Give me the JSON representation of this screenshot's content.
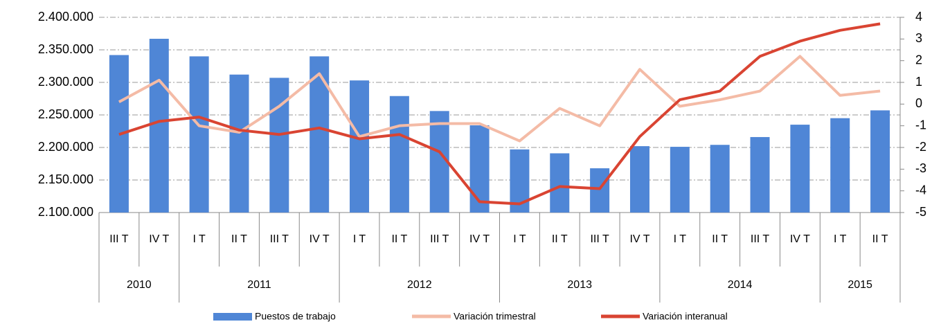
{
  "chart_data": {
    "type": "bar-line",
    "categories": [
      "III T",
      "IV T",
      "I T",
      "II T",
      "III T",
      "IV T",
      "I T",
      "II T",
      "III T",
      "IV T",
      "I T",
      "II T",
      "III T",
      "IV T",
      "I T",
      "II T",
      "III T",
      "IV T",
      "I T",
      "II T"
    ],
    "groups": [
      {
        "name": "2010",
        "count": 2
      },
      {
        "name": "2011",
        "count": 4
      },
      {
        "name": "2012",
        "count": 4
      },
      {
        "name": "2013",
        "count": 4
      },
      {
        "name": "2014",
        "count": 4
      },
      {
        "name": "2015",
        "count": 2
      }
    ],
    "series": [
      {
        "name": "Puestos de trabajo",
        "type": "bar",
        "color": "#4f86d6",
        "axis": "y",
        "values": [
          2342000,
          2367000,
          2340000,
          2312000,
          2307000,
          2340000,
          2303000,
          2279000,
          2256000,
          2234000,
          2197000,
          2191000,
          2168000,
          2202000,
          2201000,
          2204000,
          2216000,
          2235000,
          2245000,
          2257000
        ]
      },
      {
        "name": "Variación trimestral",
        "type": "line",
        "color": "#f4bba6",
        "axis": "y2",
        "values": [
          0.1,
          1.1,
          -1.0,
          -1.3,
          -0.1,
          1.4,
          -1.5,
          -1.0,
          -0.9,
          -0.9,
          -1.7,
          -0.2,
          -1.0,
          1.6,
          -0.1,
          0.2,
          0.6,
          2.2,
          0.4,
          0.6
        ]
      },
      {
        "name": "Variación interanual",
        "type": "line",
        "color": "#d94432",
        "axis": "y2",
        "values": [
          -1.4,
          -0.8,
          -0.6,
          -1.2,
          -1.4,
          -1.1,
          -1.6,
          -1.4,
          -2.2,
          -4.5,
          -4.6,
          -3.8,
          -3.9,
          -1.5,
          0.2,
          0.6,
          2.2,
          2.9,
          3.4,
          3.7
        ]
      }
    ],
    "ylim": [
      2100000,
      2400000
    ],
    "yticks": [
      {
        "value": 2100000,
        "label": "2.100.000"
      },
      {
        "value": 2150000,
        "label": "2.150.000"
      },
      {
        "value": 2200000,
        "label": "2.200.000"
      },
      {
        "value": 2250000,
        "label": "2.250.000"
      },
      {
        "value": 2300000,
        "label": "2.300.000"
      },
      {
        "value": 2350000,
        "label": "2.350.000"
      },
      {
        "value": 2400000,
        "label": "2.400.000"
      }
    ],
    "y2lim": [
      -5,
      4
    ],
    "y2ticks": [
      -5,
      -4,
      -3,
      -2,
      -1,
      0,
      1,
      2,
      3,
      4
    ],
    "grid": true,
    "legend": "bottom"
  }
}
